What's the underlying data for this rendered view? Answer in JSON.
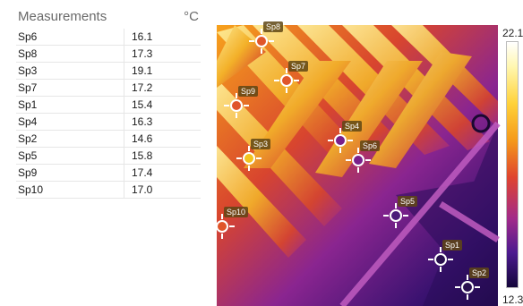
{
  "measurements": {
    "title": "Measurements",
    "unit": "°C",
    "rows": [
      {
        "name": "Sp6",
        "value": "16.1"
      },
      {
        "name": "Sp8",
        "value": "17.3"
      },
      {
        "name": "Sp3",
        "value": "19.1"
      },
      {
        "name": "Sp7",
        "value": "17.2"
      },
      {
        "name": "Sp1",
        "value": "15.4"
      },
      {
        "name": "Sp4",
        "value": "16.3"
      },
      {
        "name": "Sp2",
        "value": "14.6"
      },
      {
        "name": "Sp5",
        "value": "15.8"
      },
      {
        "name": "Sp9",
        "value": "17.4"
      },
      {
        "name": "Sp10",
        "value": "17.0"
      }
    ]
  },
  "scale": {
    "max_label": "22.1",
    "min_label": "12.3"
  },
  "spots": [
    {
      "label": "Sp8",
      "color": "#e0552a"
    },
    {
      "label": "Sp7",
      "color": "#e0552a"
    },
    {
      "label": "Sp9",
      "color": "#e0552a"
    },
    {
      "label": "Sp4",
      "color": "#7a1f8a"
    },
    {
      "label": "Sp6",
      "color": "#7a1f8a"
    },
    {
      "label": "Sp3",
      "color": "#f2c31e"
    },
    {
      "label": "Sp5",
      "color": "#4a1a7a"
    },
    {
      "label": "Sp10",
      "color": "#e0552a"
    },
    {
      "label": "Sp1",
      "color": "#2a1050"
    },
    {
      "label": "Sp2",
      "color": "#2a1050"
    }
  ]
}
